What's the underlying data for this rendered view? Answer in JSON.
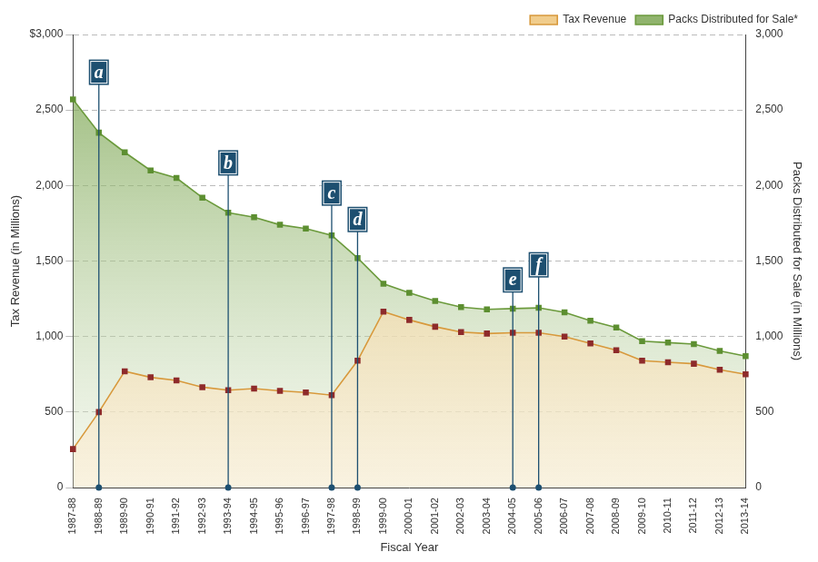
{
  "chart_data": {
    "type": "line",
    "categories": [
      "1987-88",
      "1988-89",
      "1989-90",
      "1990-91",
      "1991-92",
      "1992-93",
      "1993-94",
      "1994-95",
      "1995-96",
      "1996-97",
      "1997-98",
      "1998-99",
      "1999-00",
      "2000-01",
      "2001-02",
      "2002-03",
      "2003-04",
      "2004-05",
      "2005-06",
      "2006-07",
      "2007-08",
      "2008-09",
      "2009-10",
      "2010-11",
      "2011-12",
      "2012-13",
      "2013-14"
    ],
    "x_label": "Fiscal Year",
    "y_label": "Tax Revenue (in Millions)",
    "y2_label": "Packs Distributed for Sale (in Millions)",
    "series": [
      {
        "name": "Packs Distributed for Sale*",
        "color": "#6b9a3c",
        "axis": "y2",
        "marker": "square",
        "values": [
          2570,
          2350,
          2220,
          2100,
          2050,
          1920,
          1820,
          1790,
          1740,
          1715,
          1670,
          1520,
          1350,
          1290,
          1235,
          1195,
          1180,
          1185,
          1190,
          1160,
          1105,
          1060,
          970,
          960,
          950,
          905,
          870
        ]
      },
      {
        "name": "Tax Revenue",
        "color": "#d8993c",
        "marker": "square",
        "values": [
          255,
          500,
          770,
          730,
          710,
          665,
          645,
          655,
          640,
          630,
          612,
          840,
          1165,
          1110,
          1065,
          1030,
          1020,
          1025,
          1025,
          1000,
          955,
          910,
          840,
          830,
          820,
          780,
          750
        ]
      }
    ],
    "ylim": [
      0,
      3000
    ],
    "yticks": [
      0,
      500,
      {
        "value": 1000,
        "label": "1,000"
      },
      {
        "value": 1500,
        "label": "1,500"
      },
      {
        "value": 2000,
        "label": "2,000"
      },
      {
        "value": 2500,
        "label": "2,500"
      },
      {
        "value": 3000,
        "label": "$3,000"
      }
    ],
    "y2lim": [
      0,
      3000
    ],
    "y2ticks": [
      0,
      500,
      {
        "value": 1000,
        "label": "1,000"
      },
      {
        "value": 1500,
        "label": "1,500"
      },
      {
        "value": 2000,
        "label": "2,000"
      },
      {
        "value": 2500,
        "label": "2,500"
      },
      {
        "value": 3000,
        "label": "3,000"
      }
    ],
    "annotations": [
      {
        "text": "a",
        "x": "1988-89",
        "y": 2750
      },
      {
        "text": "b",
        "x": "1993-94",
        "y": 2150
      },
      {
        "text": "c",
        "x": "1997-98",
        "y": 1950
      },
      {
        "text": "d",
        "x": "1998-99",
        "y": 1775
      },
      {
        "text": "e",
        "x": "2004-05",
        "y": 1375
      },
      {
        "text": "f",
        "x": "2005-06",
        "y": 1475
      }
    ],
    "grid": true,
    "legend": "top-right"
  }
}
